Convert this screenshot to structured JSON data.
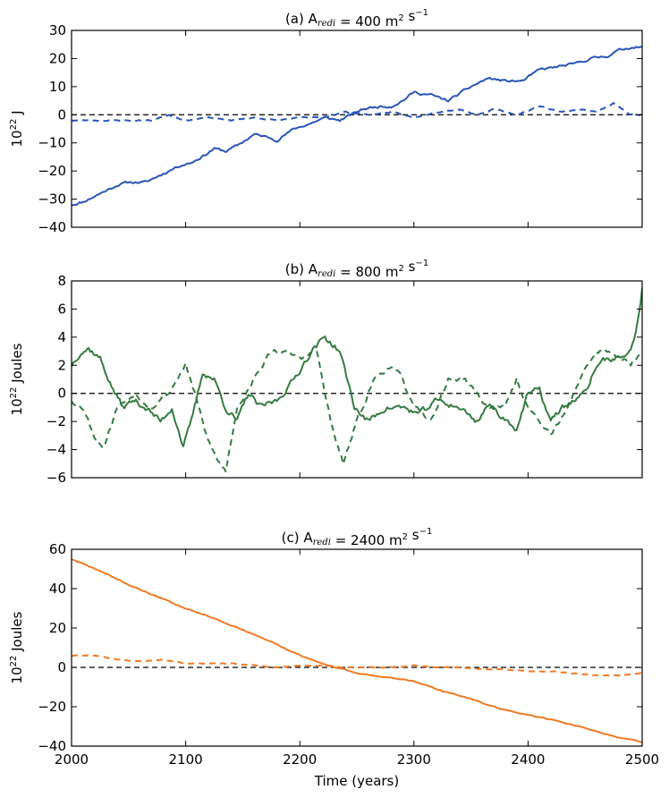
{
  "colors": {
    "series_a": "#2a55b8",
    "series_b": "#357a42",
    "series_c": "#f07a24",
    "zero_line": "#000000",
    "axes": "#000000"
  },
  "chart_data": [
    {
      "type": "line",
      "title_prefix": "(a) A",
      "title_sub": "redi",
      "title_value": " = 400 m",
      "title_unit_sup": "2",
      "title_suffix": "  s",
      "title_suffix_sup": "−1",
      "ylabel_base": "10",
      "ylabel_sup": "22",
      "ylabel_unit": " J",
      "xlabel": "",
      "xlim": [
        2000,
        2500
      ],
      "ylim": [
        -40,
        30
      ],
      "yticks": [
        -40,
        -30,
        -20,
        -10,
        0,
        10,
        20,
        30
      ],
      "xticks": [
        2000,
        2100,
        2200,
        2300,
        2400,
        2500
      ],
      "show_xtick_labels": false,
      "zero_line": true,
      "series": [
        {
          "name": "solid",
          "style": "solid",
          "noise": 0.9,
          "seed": 11,
          "x": [
            2000,
            2010,
            2025,
            2040,
            2050,
            2065,
            2080,
            2095,
            2105,
            2118,
            2125,
            2135,
            2145,
            2160,
            2172,
            2180,
            2195,
            2210,
            2222,
            2235,
            2255,
            2270,
            2280,
            2290,
            2300,
            2315,
            2330,
            2350,
            2365,
            2380,
            2395,
            2410,
            2425,
            2440,
            2455,
            2470,
            2480,
            2490,
            2500
          ],
          "y": [
            -32,
            -31,
            -28,
            -25,
            -24,
            -24,
            -21,
            -18,
            -17,
            -14,
            -12,
            -13,
            -11,
            -7,
            -8,
            -9,
            -5,
            -3,
            -1,
            -2,
            2,
            3,
            3,
            5,
            8,
            7,
            5,
            10,
            13,
            12,
            12,
            16,
            17,
            18,
            20,
            21,
            23,
            24,
            24
          ]
        },
        {
          "name": "dashed",
          "style": "dashed",
          "noise": 0.4,
          "seed": 23,
          "x": [
            2000,
            2015,
            2030,
            2050,
            2070,
            2085,
            2100,
            2120,
            2140,
            2160,
            2180,
            2200,
            2220,
            2240,
            2260,
            2280,
            2300,
            2320,
            2340,
            2355,
            2370,
            2390,
            2410,
            2430,
            2445,
            2460,
            2475,
            2490,
            2500
          ],
          "y": [
            -2,
            -2,
            -2,
            -2,
            -2,
            0,
            -2,
            -1,
            -2,
            -1,
            -2,
            -1,
            -1,
            1,
            0,
            1,
            -1,
            1,
            2,
            0,
            2,
            0,
            3,
            1,
            2,
            1,
            4,
            0,
            0
          ]
        }
      ]
    },
    {
      "type": "line",
      "title_prefix": "(b) A",
      "title_sub": "redi",
      "title_value": " = 800 m",
      "title_unit_sup": "2",
      "title_suffix": "  s",
      "title_suffix_sup": "−1",
      "ylabel_base": "10",
      "ylabel_sup": "22",
      "ylabel_unit": "  Joules",
      "xlabel": "",
      "xlim": [
        2000,
        2500
      ],
      "ylim": [
        -6,
        8
      ],
      "yticks": [
        -6,
        -4,
        -2,
        0,
        2,
        4,
        6,
        8
      ],
      "xticks": [
        2000,
        2100,
        2200,
        2300,
        2400,
        2500
      ],
      "show_xtick_labels": false,
      "zero_line": true,
      "series": [
        {
          "name": "solid",
          "style": "solid",
          "noise": 0.45,
          "seed": 37,
          "x": [
            2000,
            2008,
            2015,
            2025,
            2035,
            2045,
            2055,
            2065,
            2078,
            2088,
            2098,
            2105,
            2115,
            2125,
            2135,
            2145,
            2155,
            2165,
            2180,
            2195,
            2210,
            2222,
            2235,
            2248,
            2260,
            2275,
            2290,
            2305,
            2320,
            2340,
            2355,
            2365,
            2375,
            2390,
            2400,
            2410,
            2420,
            2430,
            2440,
            2450,
            2460,
            2470,
            2480,
            2490,
            2496,
            2500
          ],
          "y": [
            2,
            3,
            3.2,
            2.5,
            0.5,
            -1,
            -0.5,
            -1,
            -2,
            -1,
            -3.8,
            -2,
            1.5,
            1,
            -1,
            -2,
            0,
            -1,
            -0.5,
            1,
            3,
            4,
            3,
            -1,
            -2,
            -1,
            -1,
            -1.5,
            -0.5,
            -1,
            -2,
            -0.8,
            -1.5,
            -2.5,
            0,
            0.2,
            -2,
            -1,
            -0.5,
            0,
            2,
            2.5,
            2.5,
            3,
            5,
            7.5
          ]
        },
        {
          "name": "dashed",
          "style": "dashed",
          "noise": 0.35,
          "seed": 53,
          "x": [
            2000,
            2010,
            2020,
            2028,
            2040,
            2055,
            2070,
            2085,
            2100,
            2108,
            2118,
            2128,
            2135,
            2145,
            2160,
            2175,
            2185,
            2200,
            2215,
            2222,
            2230,
            2238,
            2250,
            2265,
            2280,
            2290,
            2300,
            2315,
            2330,
            2345,
            2355,
            2365,
            2380,
            2390,
            2400,
            2410,
            2420,
            2435,
            2445,
            2460,
            2475,
            2490,
            2500
          ],
          "y": [
            -0.5,
            -1,
            -3,
            -3.8,
            -1,
            0,
            -1,
            0,
            2,
            0,
            -3,
            -4.8,
            -5.5,
            -1,
            1,
            3,
            3,
            2.5,
            3,
            0,
            -3,
            -5,
            -2,
            1,
            2,
            1,
            -1,
            -2,
            1,
            1,
            0,
            -1,
            -1,
            1,
            -1,
            -2,
            -3,
            -1,
            1,
            3,
            3,
            2,
            3
          ]
        }
      ]
    },
    {
      "type": "line",
      "title_prefix": "(c) A",
      "title_sub": "redi",
      "title_value": " = 2400 m",
      "title_unit_sup": "2",
      "title_suffix": "  s",
      "title_suffix_sup": "−1",
      "ylabel_base": "10",
      "ylabel_sup": "22",
      "ylabel_unit": "  Joules",
      "xlabel": "Time (years)",
      "xlim": [
        2000,
        2500
      ],
      "ylim": [
        -40,
        60
      ],
      "yticks": [
        -40,
        -20,
        0,
        20,
        40,
        60
      ],
      "xticks": [
        2000,
        2100,
        2200,
        2300,
        2400,
        2500
      ],
      "show_xtick_labels": true,
      "zero_line": true,
      "series": [
        {
          "name": "solid",
          "style": "solid",
          "noise": 0.5,
          "seed": 71,
          "x": [
            2000,
            2025,
            2050,
            2075,
            2100,
            2125,
            2150,
            2175,
            2200,
            2225,
            2250,
            2275,
            2300,
            2325,
            2350,
            2375,
            2400,
            2425,
            2450,
            2475,
            2500
          ],
          "y": [
            55,
            49,
            42,
            36,
            30,
            25,
            19,
            13,
            6,
            1,
            -3,
            -5,
            -7,
            -12,
            -16,
            -21,
            -24,
            -27,
            -31,
            -35,
            -38
          ]
        },
        {
          "name": "dashed",
          "style": "dashed",
          "noise": 0.4,
          "seed": 89,
          "x": [
            2000,
            2020,
            2040,
            2060,
            2080,
            2100,
            2120,
            2140,
            2160,
            2180,
            2200,
            2220,
            2240,
            2260,
            2280,
            2300,
            2320,
            2340,
            2360,
            2380,
            2400,
            2420,
            2440,
            2460,
            2480,
            2500
          ],
          "y": [
            6,
            6,
            4,
            3,
            4,
            2,
            2,
            2,
            1,
            0,
            1,
            1,
            0,
            0,
            0,
            1,
            0,
            0,
            -1,
            -1,
            -2,
            -2,
            -3,
            -4,
            -4,
            -3
          ]
        }
      ]
    }
  ]
}
